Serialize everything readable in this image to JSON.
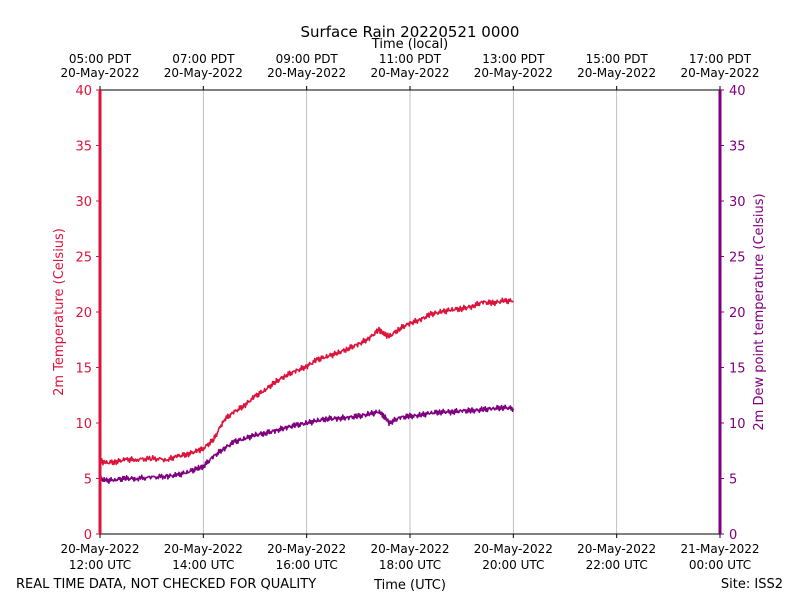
{
  "chart_data": {
    "type": "line",
    "title": "Surface Rain 20220521 0000",
    "top_axis_label": "Time (local)",
    "xlabel": "Time (UTC)",
    "ylabel_left": "2m Temperature (Celsius)",
    "ylabel_right": "2m Dew point temperature (Celsius)",
    "ylim": [
      0,
      40
    ],
    "yticks": [
      0,
      5,
      10,
      15,
      20,
      25,
      30,
      35,
      40
    ],
    "xlim_hours_utc": [
      12,
      24
    ],
    "grid": "vertical-only",
    "x_ticks_utc": [
      {
        "hour": 12,
        "date": "20-May-2022",
        "time": "12:00 UTC"
      },
      {
        "hour": 14,
        "date": "20-May-2022",
        "time": "14:00 UTC"
      },
      {
        "hour": 16,
        "date": "20-May-2022",
        "time": "16:00 UTC"
      },
      {
        "hour": 18,
        "date": "20-May-2022",
        "time": "18:00 UTC"
      },
      {
        "hour": 20,
        "date": "20-May-2022",
        "time": "20:00 UTC"
      },
      {
        "hour": 22,
        "date": "20-May-2022",
        "time": "22:00 UTC"
      },
      {
        "hour": 24,
        "date": "21-May-2022",
        "time": "00:00 UTC"
      }
    ],
    "x_ticks_local": [
      {
        "hour": 12,
        "time": "05:00 PDT",
        "date": "20-May-2022"
      },
      {
        "hour": 14,
        "time": "07:00 PDT",
        "date": "20-May-2022"
      },
      {
        "hour": 16,
        "time": "09:00 PDT",
        "date": "20-May-2022"
      },
      {
        "hour": 18,
        "time": "11:00 PDT",
        "date": "20-May-2022"
      },
      {
        "hour": 20,
        "time": "13:00 PDT",
        "date": "20-May-2022"
      },
      {
        "hour": 22,
        "time": "15:00 PDT",
        "date": "20-May-2022"
      },
      {
        "hour": 24,
        "time": "17:00 PDT",
        "date": "20-May-2022"
      }
    ],
    "series": [
      {
        "name": "2m Temperature",
        "color": "#dc143c",
        "x": [
          12.0,
          12.1,
          12.3,
          12.5,
          12.7,
          13.0,
          13.3,
          13.5,
          13.7,
          13.9,
          14.0,
          14.2,
          14.4,
          14.6,
          14.8,
          15.0,
          15.2,
          15.4,
          15.6,
          15.8,
          16.0,
          16.2,
          16.4,
          16.6,
          16.8,
          17.0,
          17.2,
          17.4,
          17.5,
          17.6,
          17.8,
          18.0,
          18.2,
          18.4,
          18.6,
          18.8,
          19.0,
          19.2,
          19.4,
          19.6,
          19.8,
          20.0
        ],
        "values": [
          6.6,
          6.4,
          6.5,
          6.7,
          6.7,
          6.8,
          6.7,
          7.0,
          7.2,
          7.5,
          7.7,
          8.5,
          10.3,
          11.0,
          11.6,
          12.4,
          13.0,
          13.7,
          14.3,
          14.7,
          15.1,
          15.7,
          16.0,
          16.3,
          16.7,
          17.1,
          17.6,
          18.4,
          18.0,
          17.8,
          18.5,
          19.0,
          19.3,
          19.8,
          20.0,
          20.2,
          20.3,
          20.5,
          20.9,
          20.8,
          21.0,
          21.0
        ]
      },
      {
        "name": "2m Dew point temperature",
        "color": "#800080",
        "x": [
          12.0,
          12.1,
          12.3,
          12.5,
          12.7,
          13.0,
          13.3,
          13.5,
          13.7,
          13.9,
          14.0,
          14.2,
          14.4,
          14.6,
          14.8,
          15.0,
          15.2,
          15.4,
          15.6,
          15.8,
          16.0,
          16.2,
          16.4,
          16.6,
          16.8,
          17.0,
          17.2,
          17.4,
          17.5,
          17.6,
          17.8,
          18.0,
          18.2,
          18.4,
          18.6,
          18.8,
          19.0,
          19.2,
          19.4,
          19.6,
          19.8,
          20.0
        ],
        "values": [
          5.0,
          4.8,
          4.9,
          5.0,
          5.0,
          5.1,
          5.2,
          5.3,
          5.6,
          5.9,
          6.1,
          7.0,
          7.7,
          8.3,
          8.6,
          8.9,
          9.1,
          9.3,
          9.6,
          9.8,
          10.0,
          10.2,
          10.4,
          10.4,
          10.5,
          10.6,
          10.8,
          11.0,
          10.6,
          10.0,
          10.5,
          10.6,
          10.7,
          10.9,
          11.0,
          11.0,
          11.1,
          11.1,
          11.2,
          11.3,
          11.4,
          11.3
        ]
      }
    ]
  },
  "footer": {
    "left_note": "REAL TIME DATA, NOT CHECKED FOR QUALITY",
    "site": "Site: ISS2"
  }
}
